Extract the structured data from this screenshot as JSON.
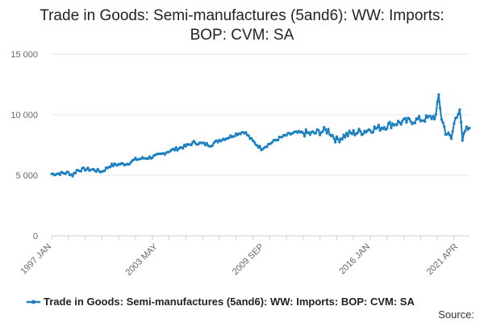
{
  "title_line1": "Trade in Goods: Semi-manufactures (5and6): WW: Imports:",
  "title_line2": "BOP: CVM: SA",
  "source_label": "Source:",
  "colors": {
    "series": "#1a7fc1",
    "grid": "#e6e6e6",
    "axis_text": "#666666"
  },
  "chart_data": {
    "type": "line",
    "title": "Trade in Goods: Semi-manufactures (5and6): WW: Imports: BOP: CVM: SA",
    "xlabel": "",
    "ylabel": "",
    "x_range": [
      "1997-01",
      "2021-04"
    ],
    "ylim": [
      0,
      15000
    ],
    "y_ticks": [
      0,
      5000,
      10000,
      15000
    ],
    "y_tick_labels": [
      "0",
      "5 000",
      "10 000",
      "15 000"
    ],
    "x_tick_labels": [
      "1997 JAN",
      "2003 MAY",
      "2009 SEP",
      "2016 JAN",
      "2021 APR"
    ],
    "grid": true,
    "legend_position": "bottom",
    "series": [
      {
        "name": "Trade in Goods: Semi-manufactures (5and6): WW: Imports: BOP: CVM: SA",
        "color": "#1a7fc1",
        "points": [
          [
            "1997-01",
            5100
          ],
          [
            "1997-07",
            5150
          ],
          [
            "1998-01",
            5200
          ],
          [
            "1998-04",
            5000
          ],
          [
            "1998-07",
            5400
          ],
          [
            "1999-01",
            5500
          ],
          [
            "1999-07",
            5450
          ],
          [
            "2000-01",
            5300
          ],
          [
            "2000-07",
            5800
          ],
          [
            "2001-01",
            5900
          ],
          [
            "2001-07",
            5950
          ],
          [
            "2002-01",
            6300
          ],
          [
            "2002-07",
            6400
          ],
          [
            "2003-01",
            6500
          ],
          [
            "2003-07",
            6700
          ],
          [
            "2004-01",
            7000
          ],
          [
            "2004-07",
            7200
          ],
          [
            "2005-01",
            7400
          ],
          [
            "2005-07",
            7700
          ],
          [
            "2006-01",
            7600
          ],
          [
            "2006-07",
            7500
          ],
          [
            "2007-01",
            7900
          ],
          [
            "2007-07",
            8100
          ],
          [
            "2008-01",
            8400
          ],
          [
            "2008-07",
            8600
          ],
          [
            "2009-01",
            7800
          ],
          [
            "2009-07",
            7200
          ],
          [
            "2010-01",
            7600
          ],
          [
            "2010-07",
            8000
          ],
          [
            "2011-01",
            8300
          ],
          [
            "2011-07",
            8500
          ],
          [
            "2012-01",
            8500
          ],
          [
            "2012-07",
            8400
          ],
          [
            "2013-01",
            8600
          ],
          [
            "2013-07",
            8700
          ],
          [
            "2014-01",
            7900
          ],
          [
            "2014-07",
            8300
          ],
          [
            "2015-01",
            8500
          ],
          [
            "2015-07",
            8600
          ],
          [
            "2016-01",
            8800
          ],
          [
            "2016-07",
            8900
          ],
          [
            "2017-01",
            9100
          ],
          [
            "2017-07",
            9300
          ],
          [
            "2018-01",
            9400
          ],
          [
            "2018-07",
            9500
          ],
          [
            "2019-01",
            9600
          ],
          [
            "2019-07",
            9700
          ],
          [
            "2019-12",
            9900
          ],
          [
            "2020-02",
            11600
          ],
          [
            "2020-04",
            9700
          ],
          [
            "2020-07",
            8600
          ],
          [
            "2020-11",
            8000
          ],
          [
            "2021-02",
            9800
          ],
          [
            "2021-05",
            10500
          ],
          [
            "2021-07",
            7700
          ],
          [
            "2021-09",
            8700
          ],
          [
            "2021-12",
            8900
          ]
        ]
      }
    ]
  }
}
